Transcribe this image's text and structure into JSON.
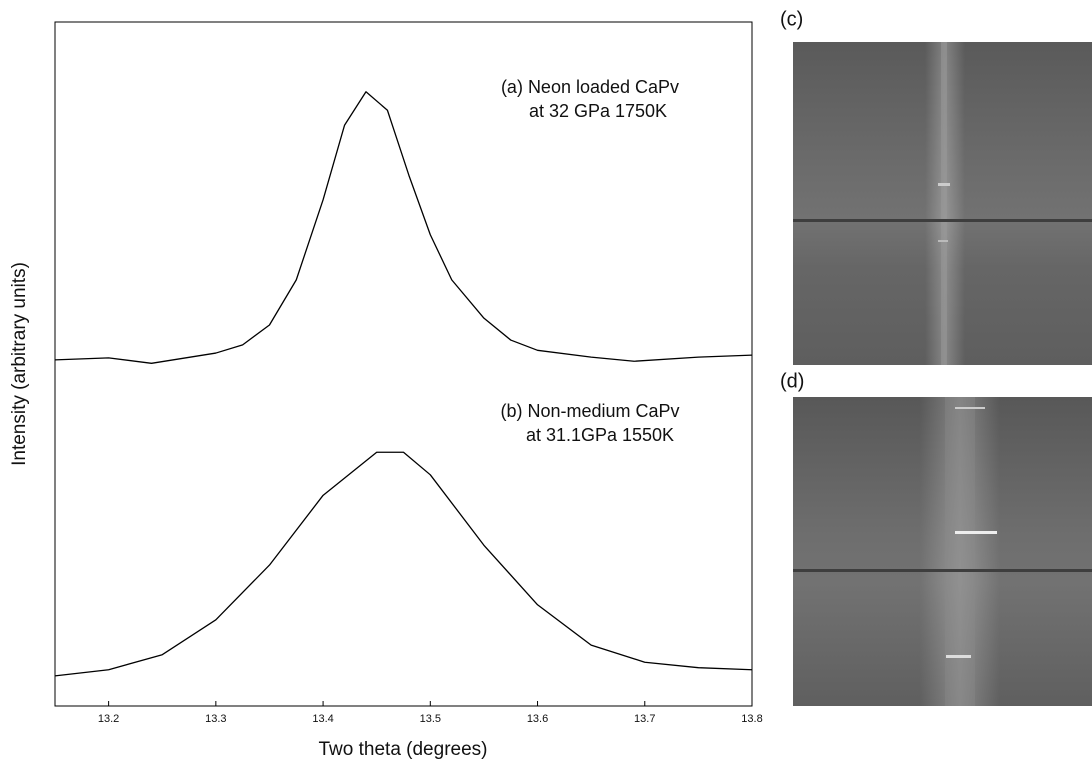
{
  "chart_data": {
    "type": "line",
    "xlabel": "Two theta (degrees)",
    "ylabel": "Intensity (arbitrary units)",
    "xlim": [
      13.15,
      13.8
    ],
    "xticks": [
      13.2,
      13.3,
      13.4,
      13.5,
      13.6,
      13.7,
      13.8
    ],
    "ylim": [
      0,
      100
    ],
    "annotations": [
      [
        "(a) Neon loaded CaPv",
        "at 32 GPa 1750K"
      ],
      [
        "(b) Non-medium CaPv",
        "at 31.1GPa 1550K"
      ]
    ],
    "panel_labels": [
      "(c)",
      "(d)"
    ],
    "series": [
      {
        "color": "#000000",
        "x": [
          13.15,
          13.2,
          13.24,
          13.3,
          13.325,
          13.35,
          13.375,
          13.4,
          13.42,
          13.44,
          13.46,
          13.48,
          13.5,
          13.52,
          13.55,
          13.575,
          13.6,
          13.65,
          13.69,
          13.75,
          13.8
        ],
        "values": [
          50.6,
          50.9,
          50.1,
          51.6,
          52.8,
          55.7,
          62.3,
          74.0,
          84.9,
          89.8,
          87.1,
          77.6,
          68.9,
          62.3,
          56.7,
          53.5,
          52.0,
          51.0,
          50.4,
          51.0,
          51.3
        ]
      },
      {
        "color": "#000000",
        "x": [
          13.15,
          13.2,
          13.25,
          13.3,
          13.35,
          13.4,
          13.45,
          13.475,
          13.5,
          13.55,
          13.6,
          13.65,
          13.7,
          13.75,
          13.8
        ],
        "values": [
          4.4,
          5.3,
          7.5,
          12.6,
          20.6,
          30.8,
          37.1,
          37.1,
          33.8,
          23.5,
          14.8,
          8.9,
          6.4,
          5.6,
          5.3
        ]
      }
    ]
  }
}
